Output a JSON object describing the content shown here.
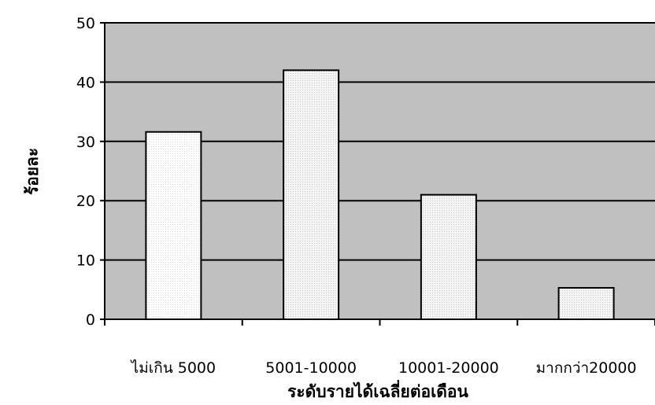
{
  "chart_data": {
    "type": "bar",
    "title": "",
    "xlabel": "ระดับรายได้เฉลี่ยต่อเดือน",
    "ylabel": "ร้อยละ",
    "categories": [
      "ไม่เกิน 5000",
      "5001-10000",
      "10001-20000",
      "มากกว่า20000"
    ],
    "values": [
      31.6,
      42.0,
      21.0,
      5.3
    ],
    "ylim": [
      0,
      50
    ],
    "yticks": [
      0,
      10,
      20,
      30,
      40,
      50
    ],
    "grid": true,
    "legend": "none",
    "colors": {
      "plot_background": "#c0c0c0",
      "bar_fill": "#f2f2f2",
      "bar_edge": "#000000",
      "gridline": "#000000"
    }
  }
}
